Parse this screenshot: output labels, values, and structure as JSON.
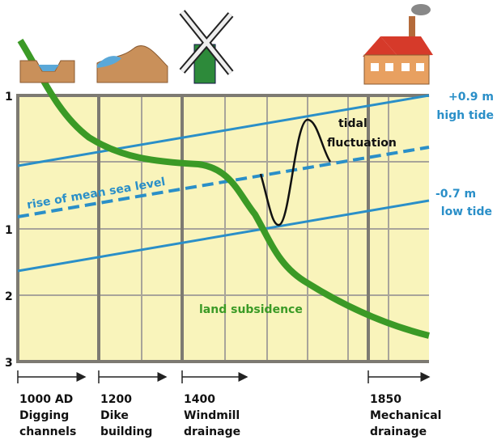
{
  "y_labels": [
    "1",
    "1",
    "2",
    "3"
  ],
  "annotations": {
    "high_value": "+0.9 m",
    "high_label": "high tide",
    "low_value": "-0.7 m",
    "low_label": "low tide",
    "tidal_1": "tidal",
    "tidal_2": "fluctuation",
    "mean": "rise of mean sea level",
    "subsidence": "land subsidence"
  },
  "timeline": [
    {
      "year": "1000 AD",
      "line1": "Digging",
      "line2": "channels"
    },
    {
      "year": "1200",
      "line1": "Dike",
      "line2": "building"
    },
    {
      "year": "1400",
      "line1": "Windmill",
      "line2": "drainage"
    },
    {
      "year": "1850",
      "line1": "Mechanical",
      "line2": "drainage"
    }
  ]
}
